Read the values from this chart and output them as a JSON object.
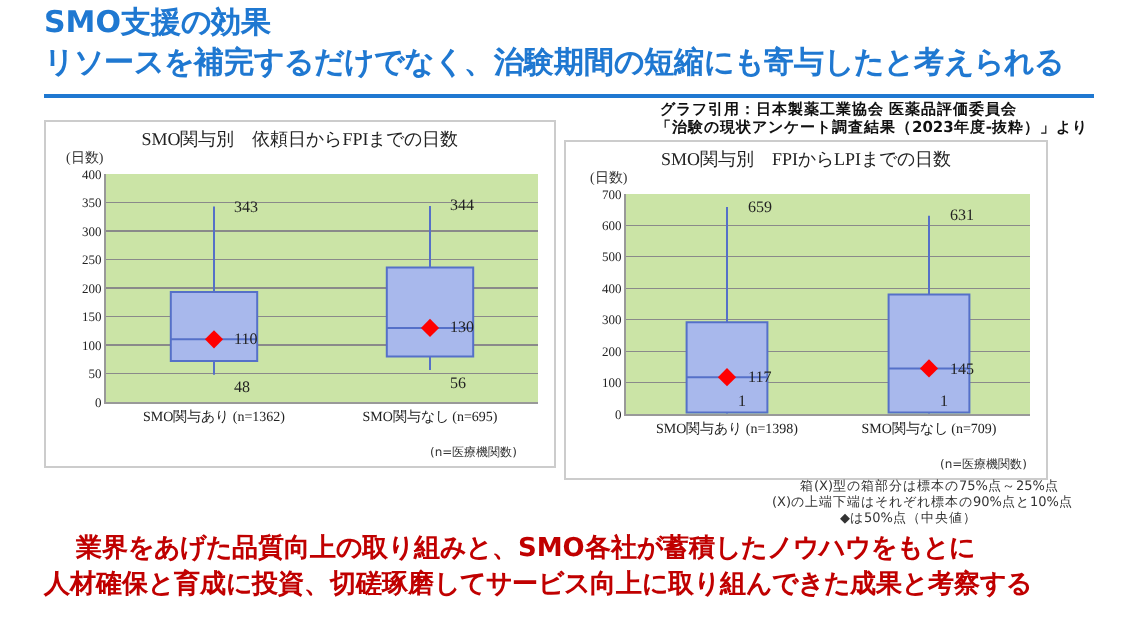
{
  "chart_data": [
    {
      "type": "box",
      "title": "SMO関与別　依頼日からFPIまでの日数",
      "ylabel": "(日数)",
      "categories": [
        "SMO関与あり (n=1362)",
        "SMO関与なし (n=695)"
      ],
      "boxes": [
        {
          "low": 48,
          "q1": 72,
          "median": 110,
          "q3": 193,
          "high": 343
        },
        {
          "low": 56,
          "q1": 80,
          "median": 130,
          "q3": 236,
          "high": 344
        }
      ],
      "color": "#a8b8ec",
      "ylim": [
        0,
        400
      ],
      "yticks": [
        0,
        50,
        100,
        150,
        200,
        250,
        300,
        350,
        400
      ],
      "grid": "y",
      "marker": "diamond",
      "annotations": [
        "SMO支援の効果",
        "リソースを補完するだけでなく、治験期間の短縮にも寄与したと考えられる",
        "業界をあげた品質向上の取り組みと、SMO各社が蓄積したノウハウをもとに",
        "人材確保と育成に投資、切磋琢磨してサービス向上に取り組んできた成果と考察する",
        "(n=医療機関数)",
        {
          "text": "343",
          "x": "SMO関与あり (n=1362)",
          "y": 343
        },
        {
          "text": "110",
          "x": "SMO関与あり (n=1362)",
          "y": 110
        },
        {
          "text": "48",
          "x": "SMO関与あり (n=1362)",
          "y": 48
        },
        {
          "text": "344",
          "x": "SMO関与なし (n=695)",
          "y": 344
        },
        {
          "text": "130",
          "x": "SMO関与なし (n=695)",
          "y": 130
        },
        {
          "text": "56",
          "x": "SMO関与なし (n=695)",
          "y": 56
        }
      ]
    },
    {
      "type": "box",
      "title": "SMO関与別　FPIからLPIまでの日数",
      "ylabel": "(日数)",
      "categories": [
        "SMO関与あり (n=1398)",
        "SMO関与なし (n=709)"
      ],
      "boxes": [
        {
          "low": 1,
          "q1": 5,
          "median": 117,
          "q3": 292,
          "high": 659
        },
        {
          "low": 1,
          "q1": 5,
          "median": 145,
          "q3": 380,
          "high": 631
        }
      ],
      "color": "#a8b8ec",
      "ylim": [
        0,
        700
      ],
      "yticks": [
        0,
        100,
        200,
        300,
        400,
        500,
        600,
        700
      ],
      "grid": "y",
      "marker": "diamond",
      "annotations": [
        "グラフ引用：日本製薬工業協会 医薬品評価委員会",
        "「治験の現状アンケート調査結果（2023年度-抜粋）」より",
        "(n=医療機関数)",
        "箱(X)型の箱部分は標本の75%点～25%点",
        "(X)の上端下端はそれぞれ標本の90%点と10%点",
        "◆は50%点（中央値）",
        {
          "text": "659",
          "x": "SMO関与あり (n=1398)",
          "y": 659
        },
        {
          "text": "117",
          "x": "SMO関与あり (n=1398)",
          "y": 117
        },
        {
          "text": "1",
          "x": "SMO関与あり (n=1398)",
          "y": 1
        },
        {
          "text": "631",
          "x": "SMO関与なし (n=709)",
          "y": 631
        },
        {
          "text": "145",
          "x": "SMO関与なし (n=709)",
          "y": 145
        },
        {
          "text": "1",
          "x": "SMO関与なし (n=709)",
          "y": 1
        }
      ]
    }
  ]
}
